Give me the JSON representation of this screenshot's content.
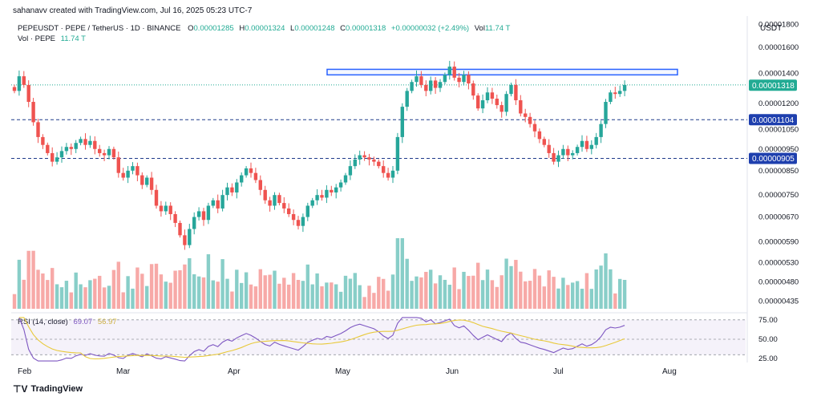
{
  "attribution": "sahanavv created with TradingView.com, Jul 16, 2025 05:23 UTC-7",
  "legend": {
    "symbol": "PEPEUSDT · PEPE / TetherUS · 1D · BINANCE",
    "o_label": "O",
    "o": "0.00001285",
    "h_label": "H",
    "h": "0.00001324",
    "l_label": "L",
    "l": "0.00001248",
    "c_label": "C",
    "c": "0.00001318",
    "change": "+0.00000032 (+2.49%)",
    "vol_label": "Vol",
    "vol": "11.74 T",
    "vol_line_label": "Vol · PEPE",
    "vol_line_value": "11.74 T"
  },
  "currency": "USDT",
  "rsi": {
    "label": "RSI (14, close)",
    "value1": "69.07",
    "value2": "56.97"
  },
  "brand": "TradingView",
  "colors": {
    "up": "#26a69a",
    "down": "#ef5350",
    "box": "#2962ff",
    "rsi": "#7e57c2",
    "rsi_ma": "#e8c93a",
    "label_dark": "#1e3fae",
    "label_green": "#22ab94"
  },
  "chart_data": {
    "type": "candlestick",
    "y_scale": "log",
    "y_ticks": [
      "0.00001800",
      "0.00001600",
      "0.00001400",
      "0.00001200",
      "0.00001050",
      "0.00000950",
      "0.00000850",
      "0.00000750",
      "0.00000670",
      "0.00000590",
      "0.00000530",
      "0.00000480",
      "0.00000435"
    ],
    "x_ticks": [
      "Feb",
      "Mar",
      "Apr",
      "May",
      "Jun",
      "Jul",
      "Aug"
    ],
    "price_labels": [
      "0.00001318",
      "0.00001104",
      "0.00000905"
    ],
    "horizontal_levels": [
      1.104e-05,
      9.05e-06
    ],
    "resistance_box": [
      1.39e-05,
      1.43e-05
    ],
    "rsi_ticks": [
      "75.00",
      "50.00",
      "25.00"
    ],
    "closes": [
      1.28e-05,
      1.38e-05,
      1.32e-05,
      1.21e-05,
      1.09e-05,
      1.01e-05,
      9.7e-06,
      9.3e-06,
      8.9e-06,
      9.1e-06,
      9.4e-06,
      9.6e-06,
      9.5e-06,
      9.8e-06,
      1e-05,
      9.7e-06,
      9.9e-06,
      9.5e-06,
      9.3e-06,
      9.2e-06,
      9.5e-06,
      9.1e-06,
      8.4e-06,
      8.2e-06,
      8.5e-06,
      8.7e-06,
      8.3e-06,
      7.9e-06,
      8.2e-06,
      7.7e-06,
      7.1e-06,
      6.9e-06,
      7.1e-06,
      6.8e-06,
      6.5e-06,
      6.1e-06,
      5.8e-06,
      6.3e-06,
      6.7e-06,
      6.9e-06,
      6.6e-06,
      7.1e-06,
      7.3e-06,
      7e-06,
      7.5e-06,
      7.8e-06,
      7.6e-06,
      8e-06,
      8.3e-06,
      8.6e-06,
      8.4e-06,
      8.1e-06,
      7.7e-06,
      7.3e-06,
      7.1e-06,
      7.5e-06,
      7.2e-06,
      7e-06,
      6.8e-06,
      6.6e-06,
      6.4e-06,
      6.7e-06,
      7.1e-06,
      7.3e-06,
      7.5e-06,
      7.4e-06,
      7.7e-06,
      7.6e-06,
      7.8e-06,
      8e-06,
      8.3e-06,
      8.7e-06,
      9e-06,
      9.2e-06,
      9.1e-06,
      9e-06,
      8.9e-06,
      8.7e-06,
      8.4e-06,
      8.2e-06,
      8.5e-06,
      1.01e-05,
      1.18e-05,
      1.28e-05,
      1.34e-05,
      1.38e-05,
      1.32e-05,
      1.28e-05,
      1.35e-05,
      1.3e-05,
      1.34e-05,
      1.39e-05,
      1.45e-05,
      1.37e-05,
      1.34e-05,
      1.39e-05,
      1.33e-05,
      1.25e-05,
      1.17e-05,
      1.22e-05,
      1.27e-05,
      1.23e-05,
      1.19e-05,
      1.15e-05,
      1.26e-05,
      1.32e-05,
      1.22e-05,
      1.14e-05,
      1.12e-05,
      1.08e-05,
      1.04e-05,
      1e-05,
      9.7e-06,
      9.3e-06,
      8.9e-06,
      9.2e-06,
      9.5e-06,
      9.2e-06,
      9.3e-06,
      9.6e-06,
      9.9e-06,
      9.5e-06,
      9.7e-06,
      1.01e-05,
      1.08e-05,
      1.21e-05,
      1.27e-05,
      1.26e-05,
      1.28e-05,
      1.32e-05
    ]
  }
}
